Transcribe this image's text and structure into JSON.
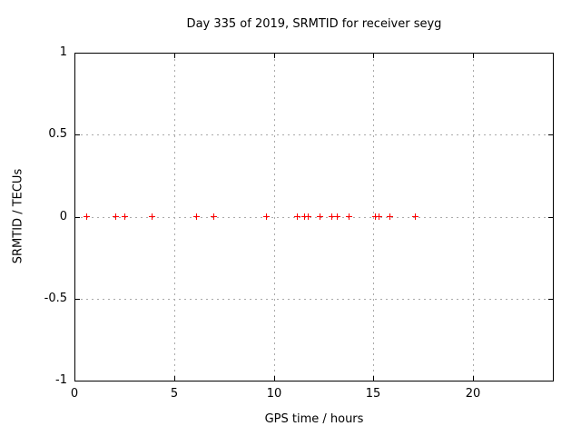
{
  "chart_data": {
    "type": "scatter",
    "title": "Day 335 of 2019, SRMTID for receiver seyg",
    "xlabel": "GPS time / hours",
    "ylabel": "SRMTID / TECUs",
    "xlim": [
      0,
      24
    ],
    "ylim": [
      -1,
      1
    ],
    "xticks": [
      0,
      5,
      10,
      15,
      20
    ],
    "xtick_labels": [
      "0",
      "5",
      "10",
      "15",
      "20"
    ],
    "yticks": [
      1,
      0.5,
      0,
      -0.5,
      -1
    ],
    "ytick_labels": [
      "1",
      "0.5",
      "0",
      "-0.5",
      "-1"
    ],
    "grid": true,
    "legend_position": "none",
    "marker": "plus",
    "colors": {
      "points": "#ff0000",
      "grid": "#aaaaaa",
      "axis": "#000000",
      "text": "#000000",
      "background": "#ffffff"
    },
    "series": [
      {
        "name": "SRMTID",
        "x": [
          0.64,
          2.08,
          2.54,
          3.92,
          6.16,
          7.01,
          9.65,
          11.19,
          11.55,
          11.75,
          12.36,
          12.93,
          13.19,
          13.78,
          13.82,
          15.13,
          15.31,
          15.85,
          17.11
        ],
        "y": [
          0,
          0,
          0,
          0,
          0,
          0,
          0,
          0,
          0,
          0,
          0,
          0,
          0,
          0,
          0,
          0,
          0,
          0,
          0
        ]
      }
    ]
  }
}
